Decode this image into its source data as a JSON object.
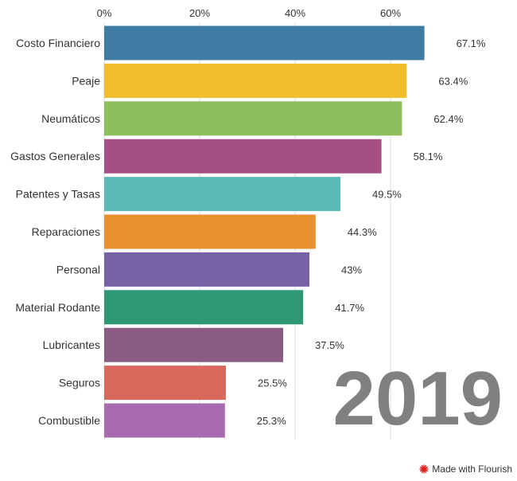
{
  "chart_data": {
    "type": "bar",
    "orientation": "horizontal",
    "xlim": [
      0,
      70
    ],
    "x_ticks": [
      "0%",
      "20%",
      "40%",
      "60%"
    ],
    "x_tick_values": [
      0,
      20,
      40,
      60
    ],
    "grid": true,
    "categories": [
      "Costo Financiero",
      "Peaje",
      "Neumáticos",
      "Gastos Generales",
      "Patentes y Tasas",
      "Reparaciones",
      "Personal",
      "Material Rodante",
      "Lubricantes",
      "Seguros",
      "Combustible"
    ],
    "values": [
      67.1,
      63.4,
      62.4,
      58.1,
      49.5,
      44.3,
      43,
      41.7,
      37.5,
      25.5,
      25.3
    ],
    "value_labels": [
      "67.1%",
      "63.4%",
      "62.4%",
      "58.1%",
      "49.5%",
      "44.3%",
      "43%",
      "41.7%",
      "37.5%",
      "25.5%",
      "25.3%"
    ],
    "colors": [
      "#3e7ca4",
      "#f1bf2e",
      "#8ebf5e",
      "#a64f82",
      "#5bb9b6",
      "#e8902c",
      "#7762a6",
      "#2f9772",
      "#8a5c84",
      "#d9695c",
      "#a96bb0"
    ],
    "year": "2019"
  },
  "credit": {
    "text": "Made with Flourish",
    "icon": "flourish-icon",
    "icon_color": "#e0201c"
  }
}
